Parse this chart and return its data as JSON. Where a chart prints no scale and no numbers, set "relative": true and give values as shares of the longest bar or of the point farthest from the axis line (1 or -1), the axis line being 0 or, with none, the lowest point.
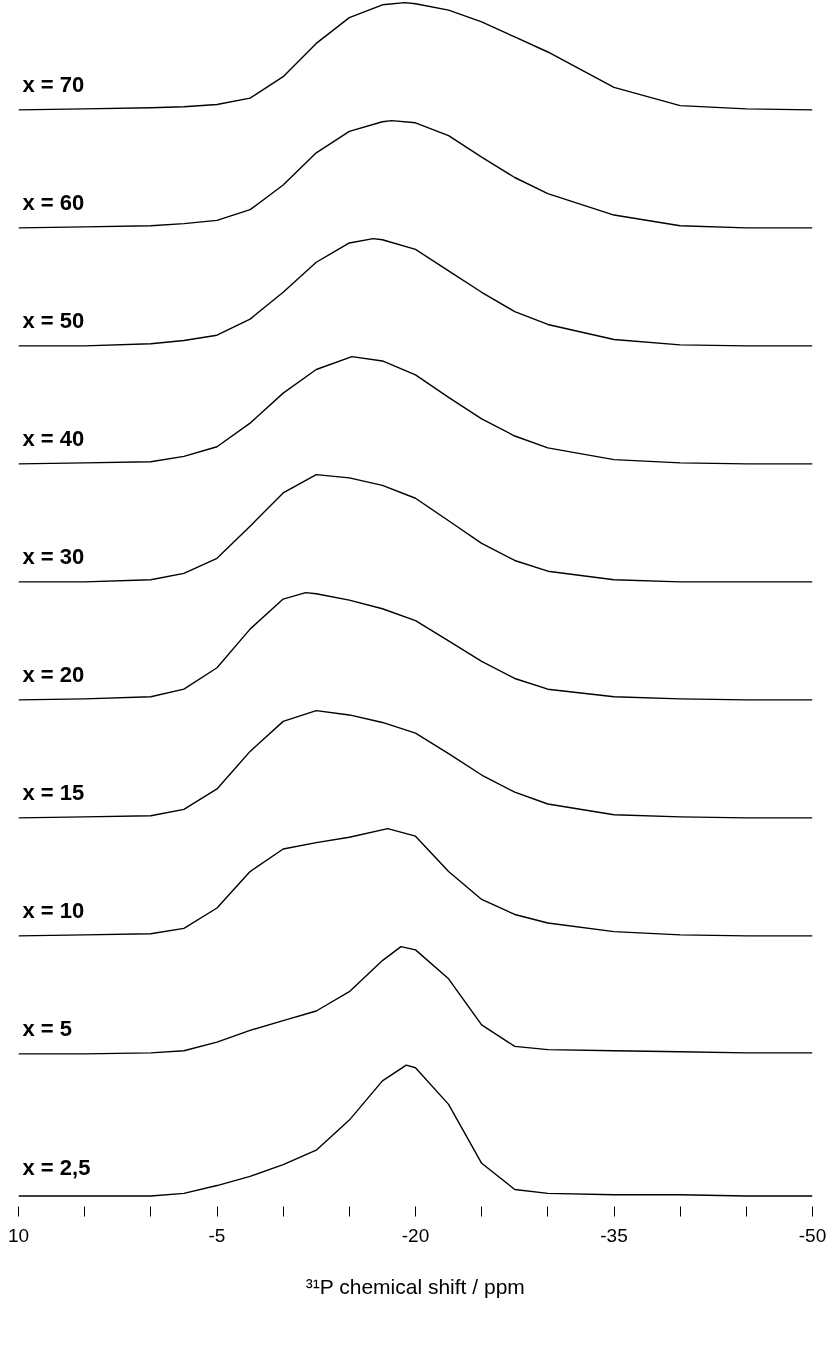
{
  "chart_data": [
    {
      "type": "line",
      "relative": true,
      "xlim": [
        10,
        -50
      ],
      "tick_labels": false,
      "x": [
        10,
        5,
        0,
        -2.5,
        -5,
        -7.5,
        -10,
        -12.5,
        -15,
        -17.5,
        -19.2,
        -20,
        -22.5,
        -25,
        -27.5,
        -30,
        -35,
        -40,
        -45,
        -50
      ],
      "series": [
        {
          "name": "x = 70",
          "color": "#000000",
          "values": [
            0,
            0.01,
            0.02,
            0.03,
            0.05,
            0.11,
            0.31,
            0.62,
            0.86,
            0.98,
            1.0,
            0.99,
            0.93,
            0.82,
            0.68,
            0.54,
            0.21,
            0.04,
            0.01,
            0
          ]
        }
      ]
    },
    {
      "type": "line",
      "relative": true,
      "xlim": [
        10,
        -50
      ],
      "tick_labels": false,
      "x": [
        10,
        5,
        0,
        -2.5,
        -5,
        -7.5,
        -10,
        -12.5,
        -15,
        -17.5,
        -18.2,
        -20,
        -22.5,
        -25,
        -27.5,
        -30,
        -35,
        -40,
        -45,
        -50
      ],
      "series": [
        {
          "name": "x = 60",
          "color": "#000000",
          "values": [
            0,
            0.01,
            0.02,
            0.04,
            0.07,
            0.17,
            0.4,
            0.7,
            0.9,
            0.99,
            1.0,
            0.98,
            0.86,
            0.66,
            0.47,
            0.32,
            0.12,
            0.02,
            0,
            0
          ]
        }
      ]
    },
    {
      "type": "line",
      "relative": true,
      "xlim": [
        10,
        -50
      ],
      "tick_labels": false,
      "x": [
        10,
        5,
        0,
        -2.5,
        -5,
        -7.5,
        -10,
        -12.5,
        -15,
        -16.8,
        -17.5,
        -20,
        -22.5,
        -25,
        -27.5,
        -30,
        -35,
        -40,
        -45,
        -50
      ],
      "series": [
        {
          "name": "x = 50",
          "color": "#000000",
          "values": [
            0,
            0,
            0.02,
            0.05,
            0.1,
            0.25,
            0.5,
            0.78,
            0.96,
            1.0,
            0.99,
            0.9,
            0.7,
            0.5,
            0.32,
            0.2,
            0.06,
            0.01,
            0,
            0
          ]
        }
      ]
    },
    {
      "type": "line",
      "relative": true,
      "xlim": [
        10,
        -50
      ],
      "tick_labels": false,
      "x": [
        10,
        5,
        0,
        -2.5,
        -5,
        -7.5,
        -10,
        -12.5,
        -15.2,
        -17.5,
        -20,
        -22.5,
        -25,
        -27.5,
        -30,
        -35,
        -40,
        -45,
        -50
      ],
      "series": [
        {
          "name": "x = 40",
          "color": "#000000",
          "values": [
            0,
            0.01,
            0.02,
            0.07,
            0.16,
            0.38,
            0.66,
            0.88,
            1.0,
            0.96,
            0.83,
            0.62,
            0.42,
            0.26,
            0.15,
            0.04,
            0.01,
            0,
            0
          ]
        }
      ]
    },
    {
      "type": "line",
      "relative": true,
      "xlim": [
        10,
        -50
      ],
      "tick_labels": false,
      "x": [
        10,
        5,
        0,
        -2.5,
        -5,
        -7.5,
        -10,
        -12.5,
        -15,
        -17.5,
        -20,
        -22.5,
        -25,
        -27.5,
        -30,
        -35,
        -40,
        -45,
        -50
      ],
      "series": [
        {
          "name": "x = 30",
          "color": "#000000",
          "values": [
            0,
            0,
            0.02,
            0.08,
            0.22,
            0.52,
            0.83,
            1.0,
            0.97,
            0.9,
            0.78,
            0.57,
            0.36,
            0.2,
            0.1,
            0.02,
            0,
            0,
            0
          ]
        }
      ]
    },
    {
      "type": "line",
      "relative": true,
      "xlim": [
        10,
        -50
      ],
      "tick_labels": false,
      "x": [
        10,
        5,
        0,
        -2.5,
        -5,
        -7.5,
        -10,
        -11.7,
        -12.5,
        -15,
        -17.5,
        -20,
        -22.5,
        -25,
        -27.5,
        -30,
        -35,
        -40,
        -45,
        -50
      ],
      "series": [
        {
          "name": "x = 20",
          "color": "#000000",
          "values": [
            0,
            0.01,
            0.03,
            0.1,
            0.3,
            0.66,
            0.94,
            1.0,
            0.99,
            0.93,
            0.85,
            0.74,
            0.55,
            0.36,
            0.2,
            0.1,
            0.03,
            0.01,
            0,
            0
          ]
        }
      ]
    },
    {
      "type": "line",
      "relative": true,
      "xlim": [
        10,
        -50
      ],
      "tick_labels": false,
      "x": [
        10,
        5,
        0,
        -2.5,
        -5,
        -7.5,
        -10,
        -12.5,
        -15,
        -17.5,
        -20,
        -22.5,
        -25,
        -27.5,
        -30,
        -35,
        -40,
        -45,
        -50
      ],
      "series": [
        {
          "name": "x = 15",
          "color": "#000000",
          "values": [
            0,
            0.01,
            0.02,
            0.08,
            0.27,
            0.62,
            0.9,
            1.0,
            0.96,
            0.89,
            0.79,
            0.6,
            0.4,
            0.24,
            0.13,
            0.03,
            0.01,
            0,
            0
          ]
        }
      ]
    },
    {
      "type": "line",
      "relative": true,
      "xlim": [
        10,
        -50
      ],
      "tick_labels": false,
      "x": [
        10,
        5,
        0,
        -2.5,
        -5,
        -7.5,
        -10,
        -12.5,
        -15,
        -17.9,
        -20,
        -22.5,
        -25,
        -27.5,
        -30,
        -35,
        -40,
        -45,
        -50
      ],
      "series": [
        {
          "name": "x = 10",
          "color": "#000000",
          "values": [
            0,
            0.01,
            0.02,
            0.07,
            0.26,
            0.6,
            0.81,
            0.87,
            0.92,
            1.0,
            0.93,
            0.6,
            0.34,
            0.2,
            0.12,
            0.04,
            0.01,
            0,
            0
          ]
        }
      ]
    },
    {
      "type": "line",
      "relative": true,
      "xlim": [
        10,
        -50
      ],
      "tick_labels": false,
      "x": [
        10,
        5,
        0,
        -2.5,
        -5,
        -7.5,
        -10,
        -12.5,
        -15,
        -17.5,
        -18.9,
        -20,
        -22.5,
        -25,
        -27.5,
        -30,
        -35,
        -40,
        -45,
        -50
      ],
      "series": [
        {
          "name": "x = 5",
          "color": "#000000",
          "values": [
            0,
            0,
            0.01,
            0.03,
            0.11,
            0.22,
            0.31,
            0.4,
            0.58,
            0.87,
            1.0,
            0.97,
            0.7,
            0.27,
            0.07,
            0.04,
            0.03,
            0.02,
            0.01,
            0.01
          ]
        }
      ]
    },
    {
      "type": "line",
      "relative": true,
      "xlim": [
        10,
        -50
      ],
      "tick_labels": "x",
      "xlabel": "³¹P chemical shift / ppm",
      "xticks": [
        10,
        {
          "value": 5,
          "label": null
        },
        {
          "value": 0,
          "label": null
        },
        -5,
        {
          "value": -10,
          "label": null
        },
        {
          "value": -15,
          "label": null
        },
        -20,
        {
          "value": -25,
          "label": null
        },
        {
          "value": -30,
          "label": null
        },
        -35,
        {
          "value": -40,
          "label": null
        },
        {
          "value": -45,
          "label": null
        },
        -50
      ],
      "x": [
        10,
        5,
        0,
        -2.5,
        -5,
        -7.5,
        -10,
        -12.5,
        -15,
        -17.5,
        -19.3,
        -20,
        -22.5,
        -25,
        -27.5,
        -30,
        -35,
        -40,
        -45,
        -50
      ],
      "series": [
        {
          "name": "x = 2,5",
          "color": "#000000",
          "values": [
            0,
            0,
            0,
            0.02,
            0.08,
            0.15,
            0.24,
            0.35,
            0.58,
            0.88,
            1.0,
            0.98,
            0.7,
            0.25,
            0.05,
            0.02,
            0.01,
            0.01,
            0,
            0
          ]
        }
      ]
    }
  ]
}
